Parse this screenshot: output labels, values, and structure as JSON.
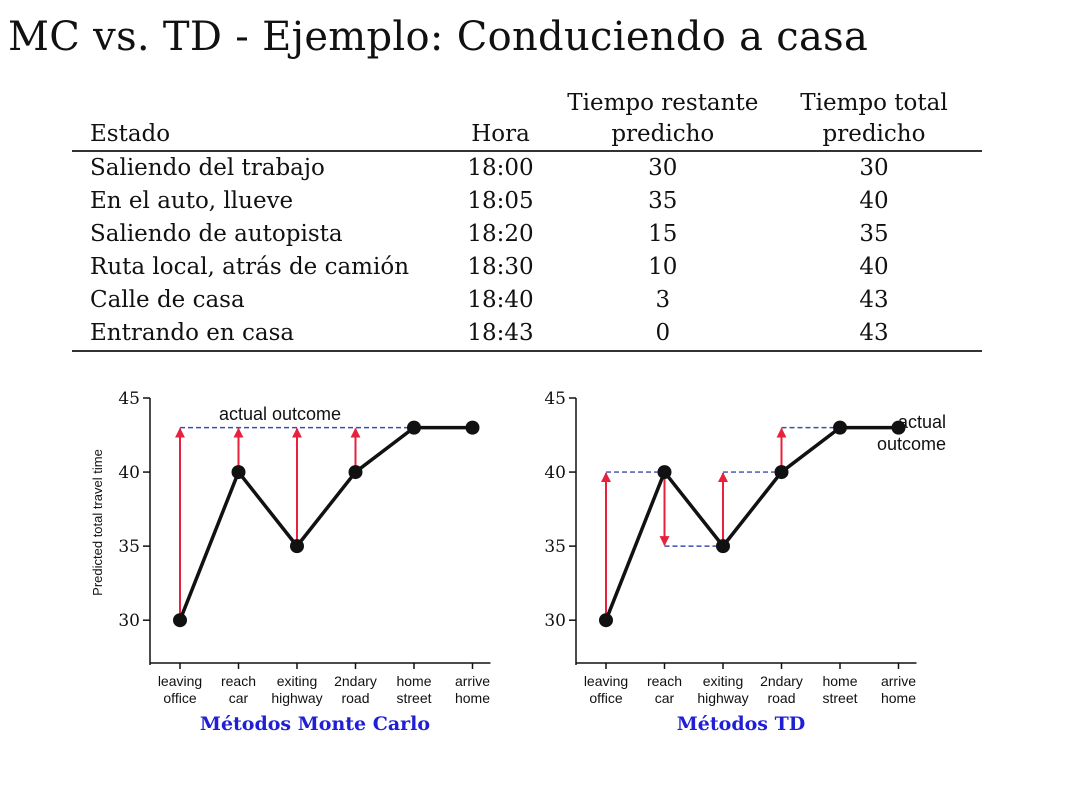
{
  "slide": {
    "title": "MC vs. TD - Ejemplo: Conduciendo a casa"
  },
  "table": {
    "columns": [
      {
        "line1": "",
        "line2": "Estado"
      },
      {
        "line1": "",
        "line2": "Hora"
      },
      {
        "line1": "Tiempo restante",
        "line2": "predicho"
      },
      {
        "line1": "Tiempo total",
        "line2": "predicho"
      }
    ],
    "rows": [
      [
        "Saliendo del trabajo",
        "18:00",
        "30",
        "30"
      ],
      [
        "En el auto, llueve",
        "18:05",
        "35",
        "40"
      ],
      [
        "Saliendo de autopista",
        "18:20",
        "15",
        "35"
      ],
      [
        "Ruta local, atrás de camión",
        "18:30",
        "10",
        "40"
      ],
      [
        "Calle de casa",
        "18:40",
        "3",
        "43"
      ],
      [
        "Entrando en casa",
        "18:43",
        "0",
        "43"
      ]
    ]
  },
  "colors": {
    "line": "#111111",
    "arrow": "#e8213d",
    "dashed": "#3b4fb0",
    "caption": "#1f1fd6"
  },
  "chart_data": [
    {
      "type": "line",
      "title": "",
      "caption": "Métodos Monte Carlo",
      "ylabel": "Predicted total travel time",
      "xlabel": "",
      "categories": [
        [
          "leaving",
          "office"
        ],
        [
          "reach",
          "car"
        ],
        [
          "exiting",
          "highway"
        ],
        [
          "2ndary",
          "road"
        ],
        [
          "home",
          "street"
        ],
        [
          "arrive",
          "home"
        ]
      ],
      "series": [
        {
          "values": [
            30,
            40,
            35,
            40,
            43,
            43
          ]
        }
      ],
      "ylim": [
        29,
        45
      ],
      "yticks": [
        30,
        35,
        40,
        45
      ],
      "annotation": {
        "text": [
          "actual outcome"
        ],
        "value": 43
      },
      "arrows": [
        {
          "x": 0,
          "from": 30,
          "to": 43
        },
        {
          "x": 1,
          "from": 40,
          "to": 43
        },
        {
          "x": 2,
          "from": 35,
          "to": 43
        },
        {
          "x": 3,
          "from": 40,
          "to": 43
        }
      ],
      "dashed": [
        {
          "x1": 0,
          "x2": 4,
          "y": 43
        }
      ]
    },
    {
      "type": "line",
      "title": "",
      "caption": "Métodos TD",
      "ylabel": "",
      "xlabel": "",
      "categories": [
        [
          "leaving",
          "office"
        ],
        [
          "reach",
          "car"
        ],
        [
          "exiting",
          "highway"
        ],
        [
          "2ndary",
          "road"
        ],
        [
          "home",
          "street"
        ],
        [
          "arrive",
          "home"
        ]
      ],
      "series": [
        {
          "values": [
            30,
            40,
            35,
            40,
            43,
            43
          ]
        }
      ],
      "ylim": [
        29,
        45
      ],
      "yticks": [
        30,
        35,
        40,
        45
      ],
      "annotation": {
        "text": [
          "actual",
          "outcome"
        ],
        "value": 43
      },
      "arrows": [
        {
          "x": 0,
          "from": 30,
          "to": 40
        },
        {
          "x": 1,
          "from": 40,
          "to": 35
        },
        {
          "x": 2,
          "from": 35,
          "to": 40
        },
        {
          "x": 3,
          "from": 40,
          "to": 43
        }
      ],
      "dashed": [
        {
          "x1": 0,
          "x2": 1,
          "y": 40
        },
        {
          "x1": 1,
          "x2": 2,
          "y": 35
        },
        {
          "x1": 2,
          "x2": 3,
          "y": 40
        },
        {
          "x1": 3,
          "x2": 4,
          "y": 43
        }
      ]
    }
  ]
}
